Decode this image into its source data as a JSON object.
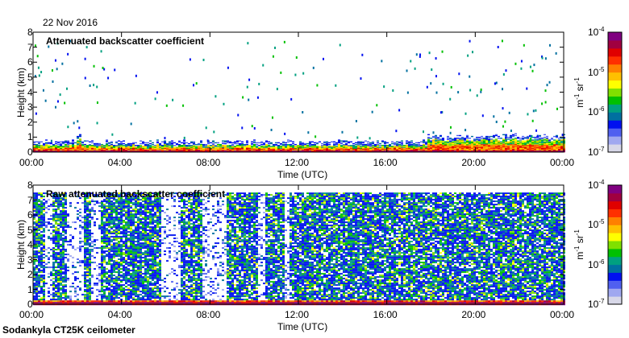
{
  "date": "22 Nov 2016",
  "footer": "Sodankyla CT25K ceilometer",
  "chart_data": [
    {
      "type": "heatmap",
      "title": "Attenuated backscatter coefficient",
      "xlabel": "Time (UTC)",
      "ylabel": "Height (km)",
      "xticks": [
        "00:00",
        "04:00",
        "08:00",
        "12:00",
        "16:00",
        "20:00",
        "00:00"
      ],
      "yticks": [
        "0",
        "1",
        "2",
        "3",
        "4",
        "5",
        "6",
        "7",
        "8"
      ],
      "xlim_hours": [
        0,
        24
      ],
      "ylim_km": [
        0,
        8
      ],
      "features": {
        "surface_layer_top_km": 0.5,
        "aerosol_top_km": 0.8,
        "sparse_returns_max_km": 7.5,
        "enhanced_period_hours": [
          17.8,
          24
        ]
      }
    },
    {
      "type": "heatmap",
      "title": "Raw attenuated backscatter coefficient",
      "xlabel": "Time (UTC)",
      "ylabel": "Height (km)",
      "xticks": [
        "00:00",
        "04:00",
        "08:00",
        "12:00",
        "16:00",
        "20:00",
        "00:00"
      ],
      "yticks": [
        "0",
        "1",
        "2",
        "3",
        "4",
        "5",
        "6",
        "7",
        "8"
      ],
      "xlim_hours": [
        0,
        24
      ],
      "ylim_km": [
        0,
        8
      ],
      "features": {
        "noise_top_km": 7.5,
        "low_signal_periods_hours": [
          [
            0.5,
            0.8
          ],
          [
            1.5,
            2.2
          ],
          [
            2.6,
            3.0
          ],
          [
            5.7,
            6.6
          ],
          [
            7.6,
            8.7
          ],
          [
            10.1,
            10.5
          ],
          [
            11.3,
            11.5
          ]
        ]
      }
    }
  ],
  "colorbar": {
    "unit_base": "m",
    "unit_exp1": "-1",
    "unit_mid": " sr",
    "unit_exp2": "-1",
    "labels": [
      {
        "base": "10",
        "exp": "-4"
      },
      {
        "base": "10",
        "exp": "-5"
      },
      {
        "base": "10",
        "exp": "-6"
      },
      {
        "base": "10",
        "exp": "-7"
      }
    ],
    "range": [
      1e-07,
      0.0001
    ],
    "colors": [
      "#d8d8e8",
      "#a0a8f0",
      "#5060f0",
      "#0010f0",
      "#0070a0",
      "#00a080",
      "#00c000",
      "#80e000",
      "#ffff00",
      "#ffc000",
      "#ff8000",
      "#ff3000",
      "#e00000",
      "#a00040",
      "#800080"
    ]
  }
}
